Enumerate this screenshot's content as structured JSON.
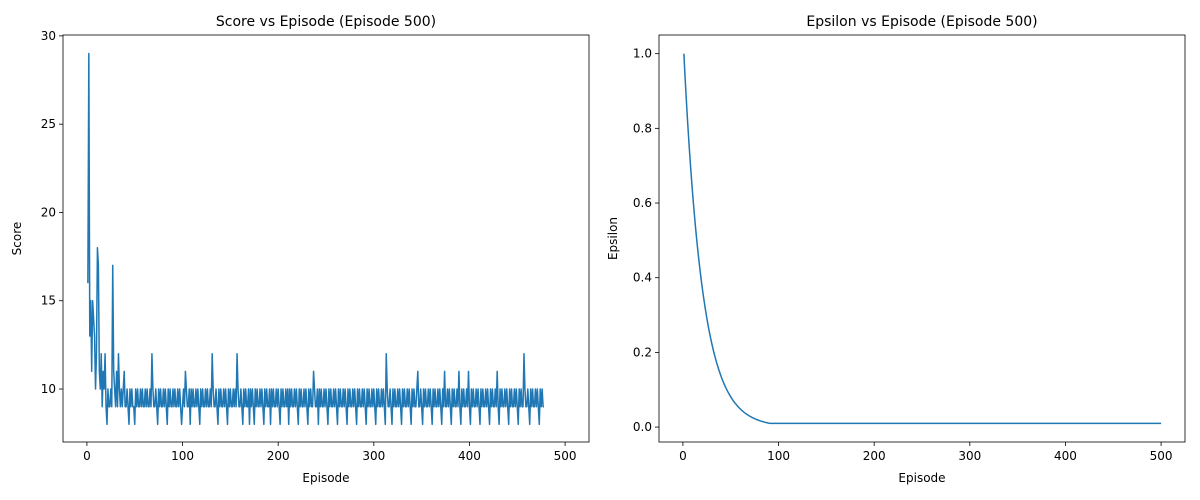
{
  "chart_data": [
    {
      "type": "line",
      "title": "Score vs Episode (Episode 500)",
      "xlabel": "Episode",
      "ylabel": "Score",
      "xlim": [
        -25,
        525
      ],
      "ylim": [
        7.0,
        30.05
      ],
      "xticks": [
        0,
        100,
        200,
        300,
        400,
        500
      ],
      "yticks": [
        10,
        15,
        20,
        25,
        30
      ],
      "grid": false,
      "legend": "none",
      "color": "#1f77b4",
      "series": [
        {
          "x_start": 1,
          "x_step": 1,
          "values": [
            16,
            29,
            13,
            15,
            11,
            15,
            14,
            13,
            10,
            12,
            18,
            17,
            11,
            10,
            12,
            9,
            11,
            10,
            12,
            9,
            8,
            10,
            9,
            9,
            10,
            9,
            17,
            11,
            10,
            9,
            11,
            9,
            12,
            10,
            9,
            10,
            9,
            10,
            11,
            9,
            9,
            10,
            9,
            8,
            10,
            9,
            10,
            9,
            9,
            8,
            10,
            9,
            10,
            9,
            9,
            10,
            9,
            10,
            9,
            9,
            10,
            9,
            10,
            9,
            9,
            10,
            9,
            12,
            10,
            9,
            9,
            10,
            9,
            8,
            10,
            9,
            10,
            9,
            9,
            10,
            9,
            10,
            9,
            8,
            10,
            9,
            10,
            9,
            9,
            10,
            9,
            10,
            9,
            9,
            10,
            9,
            10,
            9,
            8,
            9,
            10,
            9,
            11,
            10,
            9,
            9,
            10,
            8,
            10,
            9,
            10,
            9,
            9,
            10,
            9,
            10,
            9,
            8,
            10,
            9,
            10,
            9,
            9,
            10,
            9,
            10,
            9,
            9,
            10,
            9,
            12,
            10,
            9,
            9,
            10,
            9,
            8,
            10,
            9,
            10,
            9,
            9,
            10,
            9,
            10,
            9,
            8,
            10,
            9,
            10,
            9,
            9,
            10,
            9,
            10,
            9,
            12,
            10,
            9,
            9,
            10,
            9,
            8,
            10,
            9,
            10,
            9,
            9,
            10,
            8,
            10,
            9,
            10,
            9,
            8,
            10,
            9,
            10,
            9,
            9,
            10,
            9,
            10,
            9,
            8,
            10,
            9,
            10,
            9,
            9,
            10,
            8,
            10,
            9,
            10,
            9,
            9,
            10,
            9,
            10,
            9,
            8,
            10,
            9,
            10,
            9,
            9,
            10,
            9,
            10,
            8,
            10,
            9,
            10,
            9,
            9,
            10,
            9,
            10,
            9,
            8,
            10,
            9,
            10,
            9,
            9,
            10,
            9,
            10,
            9,
            8,
            10,
            9,
            10,
            9,
            9,
            11,
            10,
            9,
            9,
            10,
            8,
            10,
            9,
            10,
            9,
            9,
            10,
            9,
            10,
            9,
            8,
            10,
            9,
            10,
            9,
            9,
            10,
            9,
            10,
            9,
            8,
            10,
            9,
            10,
            9,
            9,
            10,
            9,
            10,
            9,
            8,
            10,
            9,
            10,
            9,
            9,
            10,
            9,
            10,
            9,
            8,
            10,
            9,
            10,
            9,
            9,
            10,
            9,
            10,
            9,
            8,
            10,
            9,
            10,
            9,
            9,
            10,
            9,
            10,
            9,
            8,
            10,
            9,
            10,
            9,
            9,
            10,
            9,
            10,
            9,
            8,
            12,
            10,
            9,
            9,
            10,
            9,
            8,
            10,
            9,
            10,
            9,
            9,
            10,
            9,
            10,
            9,
            8,
            10,
            9,
            10,
            9,
            9,
            10,
            9,
            10,
            9,
            8,
            10,
            9,
            10,
            9,
            9,
            10,
            11,
            9,
            9,
            10,
            9,
            8,
            10,
            9,
            10,
            9,
            9,
            10,
            9,
            10,
            9,
            8,
            10,
            9,
            10,
            9,
            9,
            10,
            9,
            10,
            9,
            8,
            10,
            9,
            11,
            9,
            9,
            10,
            9,
            10,
            9,
            8,
            10,
            9,
            10,
            9,
            9,
            10,
            9,
            11,
            9,
            8,
            10,
            9,
            10,
            9,
            9,
            10,
            9,
            11,
            9,
            8,
            10,
            9,
            10,
            9,
            9,
            10,
            9,
            10,
            9,
            8,
            10,
            9,
            10,
            9,
            9,
            10,
            9,
            10,
            9,
            8,
            10,
            9,
            10,
            9,
            9,
            10,
            9,
            11,
            9,
            8,
            10,
            9,
            10,
            9,
            9,
            10,
            9,
            10,
            9,
            8,
            10,
            9,
            10,
            9,
            9,
            10,
            9,
            10,
            9,
            8,
            10,
            9,
            10,
            9,
            9,
            12,
            10,
            9,
            9,
            10,
            9,
            8,
            10,
            9,
            10,
            9,
            9,
            10,
            9,
            10,
            9,
            8,
            10,
            9,
            10,
            9,
            9
          ]
        }
      ]
    },
    {
      "type": "line",
      "title": "Epsilon vs Episode (Episode 500)",
      "xlabel": "Episode",
      "ylabel": "Epsilon",
      "xlim": [
        -25,
        525
      ],
      "ylim": [
        -0.04,
        1.05
      ],
      "xticks": [
        0,
        100,
        200,
        300,
        400,
        500
      ],
      "yticks": [
        0.0,
        0.2,
        0.4,
        0.6,
        0.8,
        1.0
      ],
      "grid": false,
      "legend": "none",
      "color": "#1f77b4",
      "series": [
        {
          "decay_start": 1.0,
          "decay_rate": 0.95,
          "floor": 0.01,
          "x_start": 1,
          "x_end": 500
        }
      ]
    }
  ]
}
